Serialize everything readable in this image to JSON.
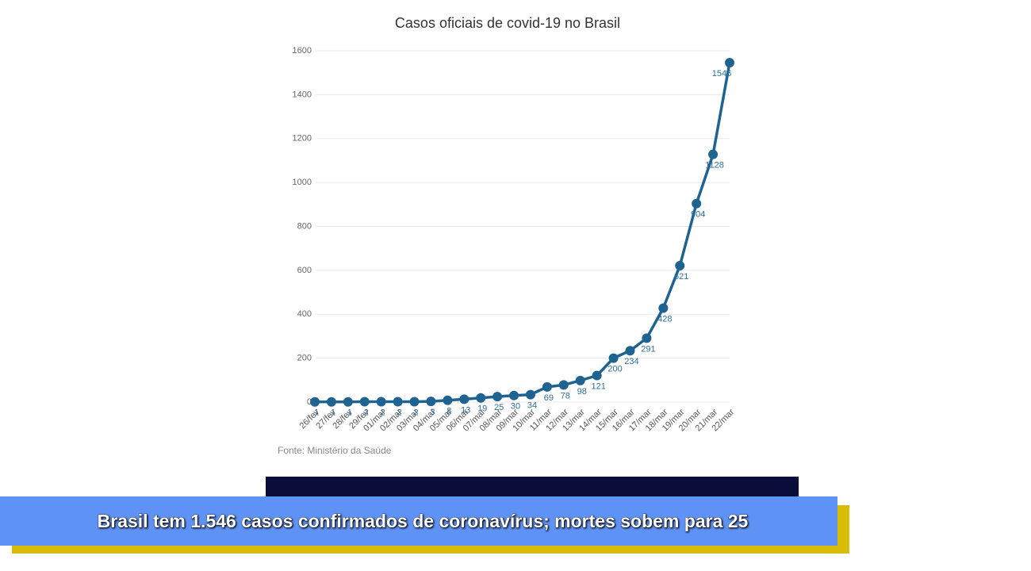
{
  "chart_data": {
    "type": "line",
    "title": "Casos oficiais de covid-19 no Brasil",
    "source": "Fonte: Ministério da Saúde",
    "categories": [
      "26/fev",
      "27/fev",
      "28/fev",
      "29/fev",
      "01/mar",
      "02/mar",
      "03/mar",
      "04/mar",
      "05/mar",
      "06/mar",
      "07/mar",
      "08/mar",
      "09/mar",
      "10/mar",
      "11/mar",
      "12/mar",
      "13/mar",
      "14/mar",
      "15/mar",
      "16/mar",
      "17/mar",
      "18/mar",
      "19/mar",
      "20/mar",
      "21/mar",
      "22/mar"
    ],
    "values": [
      1,
      1,
      1,
      2,
      2,
      2,
      2,
      3,
      8,
      13,
      19,
      25,
      30,
      34,
      69,
      78,
      98,
      121,
      200,
      234,
      291,
      428,
      621,
      904,
      1128,
      1546
    ],
    "color": "#1f6391",
    "ylim": [
      0,
      1600
    ],
    "yticks": [
      0,
      200,
      400,
      600,
      800,
      1000,
      1200,
      1400,
      1600
    ],
    "grid": true
  },
  "banner": {
    "text": "Brasil tem 1.546 casos confirmados de coronavírus; mortes sobem para 25"
  }
}
